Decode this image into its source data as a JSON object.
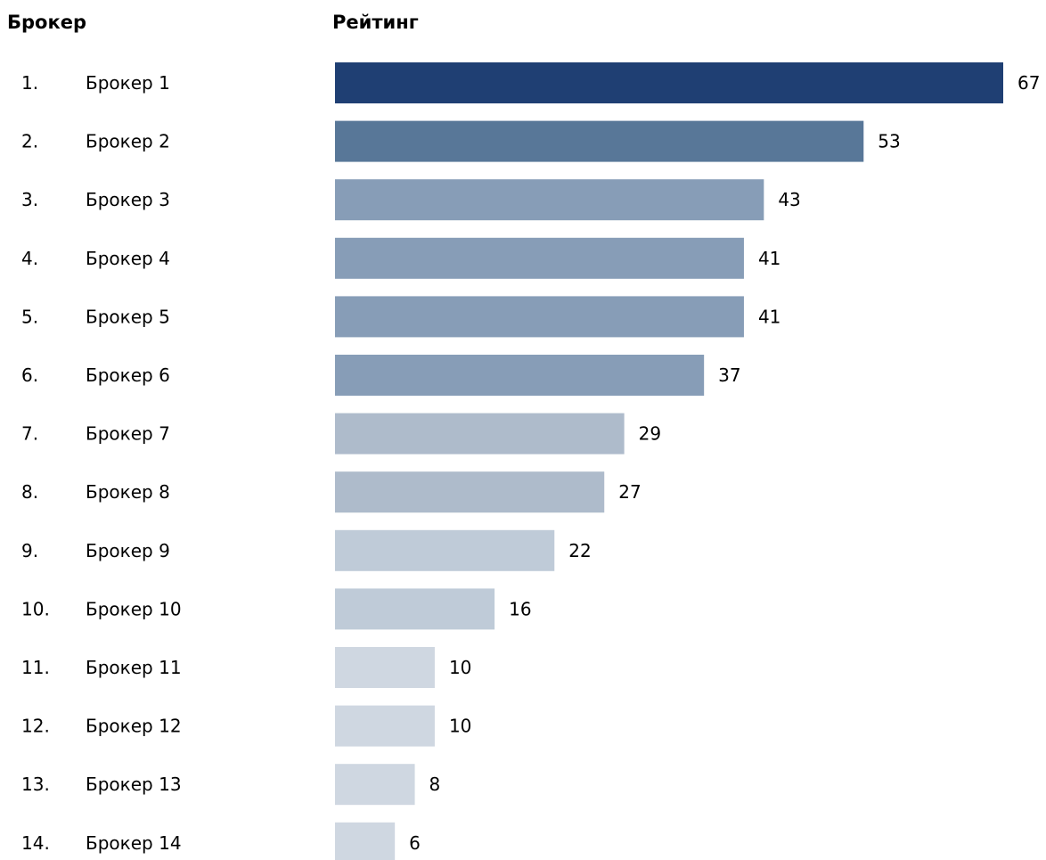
{
  "headers": {
    "broker": "Брокер",
    "rating": "Рейтинг"
  },
  "chart_data": {
    "type": "bar",
    "orientation": "horizontal",
    "title": "",
    "xlabel": "",
    "ylabel": "",
    "grid": false,
    "legend": "none",
    "xlim": [
      0,
      67
    ],
    "rows": [
      {
        "rank": "1.",
        "name": "Брокер 1",
        "value": 67,
        "color": "#1f3f73"
      },
      {
        "rank": "2.",
        "name": "Брокер 2",
        "value": 53,
        "color": "#587798"
      },
      {
        "rank": "3.",
        "name": "Брокер 3",
        "value": 43,
        "color": "#879db7"
      },
      {
        "rank": "4.",
        "name": "Брокер 4",
        "value": 41,
        "color": "#879db7"
      },
      {
        "rank": "5.",
        "name": "Брокер 5",
        "value": 41,
        "color": "#879db7"
      },
      {
        "rank": "6.",
        "name": "Брокер 6",
        "value": 37,
        "color": "#879db7"
      },
      {
        "rank": "7.",
        "name": "Брокер 7",
        "value": 29,
        "color": "#aebbcb"
      },
      {
        "rank": "8.",
        "name": "Брокер 8",
        "value": 27,
        "color": "#aebbcb"
      },
      {
        "rank": "9.",
        "name": "Брокер 9",
        "value": 22,
        "color": "#bfcbd8"
      },
      {
        "rank": "10.",
        "name": "Брокер 10",
        "value": 16,
        "color": "#bfcbd8"
      },
      {
        "rank": "11.",
        "name": "Брокер 11",
        "value": 10,
        "color": "#cfd7e1"
      },
      {
        "rank": "12.",
        "name": "Брокер 12",
        "value": 10,
        "color": "#cfd7e1"
      },
      {
        "rank": "13.",
        "name": "Брокер 13",
        "value": 8,
        "color": "#cfd7e1"
      },
      {
        "rank": "14.",
        "name": "Брокер 14",
        "value": 6,
        "color": "#cfd7e1"
      }
    ]
  }
}
